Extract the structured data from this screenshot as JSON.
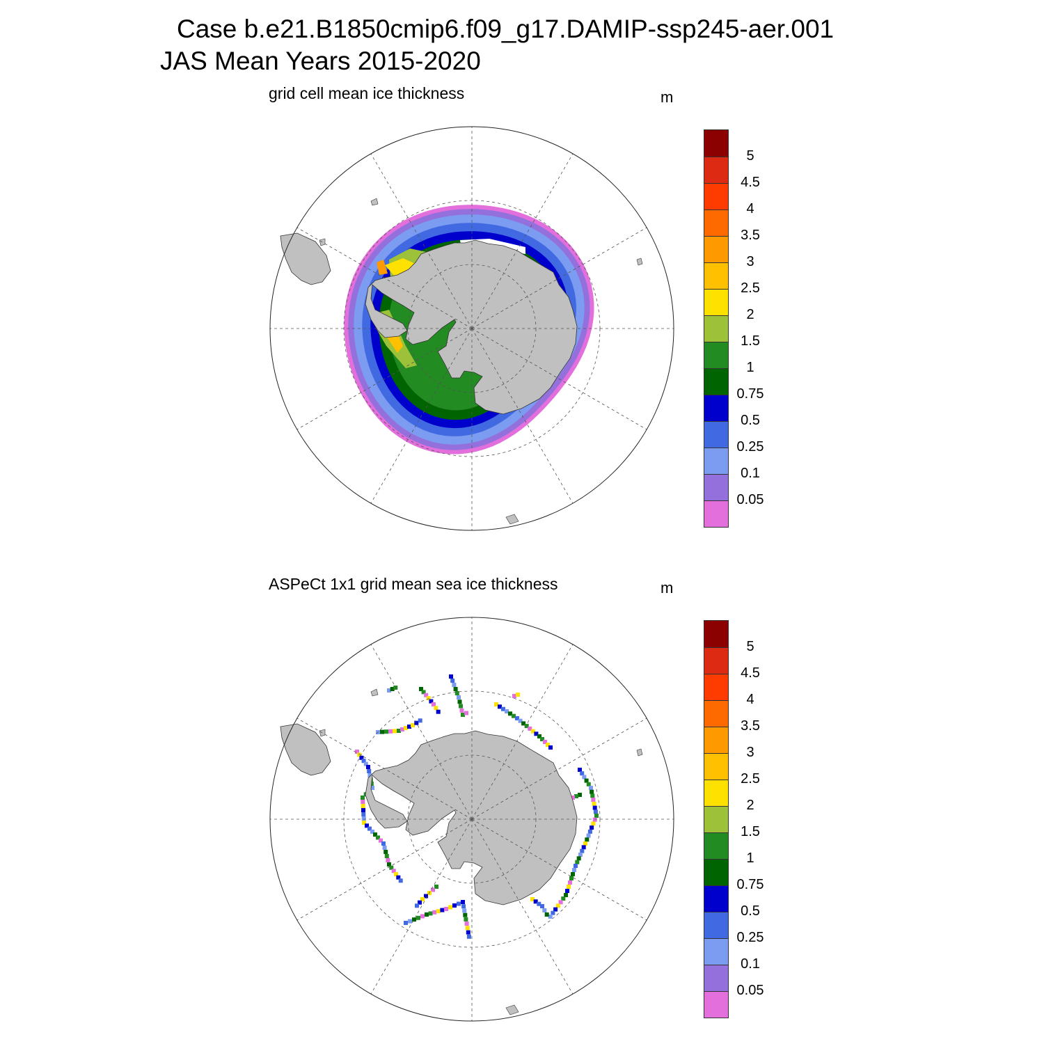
{
  "header": {
    "title_line1": "Case b.e21.B1850cmip6.f09_g17.DAMIP-ssp245-aer.001",
    "title_line2": "JAS Mean   Years 2015-2020"
  },
  "panels": [
    {
      "subtitle": "grid cell mean ice thickness",
      "units": "m",
      "kind": "model"
    },
    {
      "subtitle": "ASPeCt 1x1 grid mean sea ice thickness",
      "units": "m",
      "kind": "obs"
    }
  ],
  "colorbar": {
    "labels": [
      "5",
      "4.5",
      "4",
      "3.5",
      "3",
      "2.5",
      "2",
      "1.5",
      "1",
      "0.75",
      "0.5",
      "0.25",
      "0.1",
      "0.05"
    ],
    "colors": [
      "#8b0000",
      "#dd2a12",
      "#ff3c00",
      "#ff6a00",
      "#ff9900",
      "#ffc000",
      "#ffe100",
      "#9dc23a",
      "#228b22",
      "#006400",
      "#0000cd",
      "#4169e1",
      "#7b9cf0",
      "#9370db",
      "#e36fdd"
    ]
  },
  "colors": {
    "land": "#c0c0c0",
    "grid": "#555555"
  }
}
